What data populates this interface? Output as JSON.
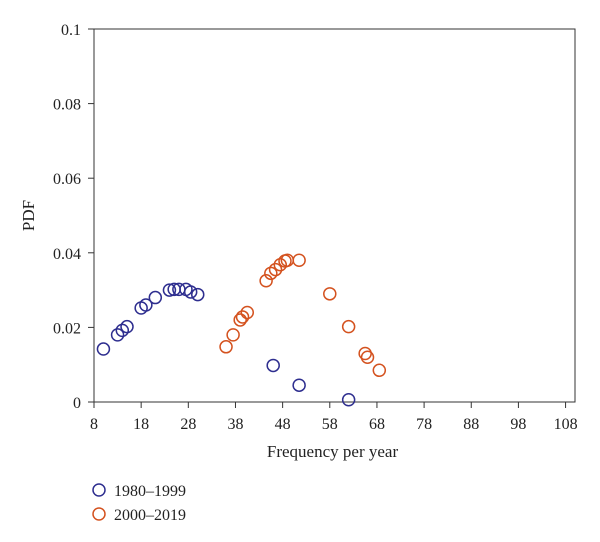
{
  "chart_data": {
    "type": "scatter",
    "title": "",
    "xlabel": "Frequency per year",
    "ylabel": "PDF",
    "xlim": [
      8,
      110
    ],
    "ylim": [
      0,
      0.1
    ],
    "xticks": [
      8,
      18,
      28,
      38,
      48,
      58,
      68,
      78,
      88,
      98,
      108
    ],
    "xtick_labels": [
      "8",
      "18",
      "28",
      "38",
      "48",
      "58",
      "68",
      "78",
      "88",
      "98",
      "108"
    ],
    "yticks": [
      0,
      0.02,
      0.04,
      0.06,
      0.08,
      0.1
    ],
    "ytick_labels": [
      "0",
      "0.02",
      "0.04",
      "0.06",
      "0.08",
      "0.1"
    ],
    "grid": false,
    "legend": "bottom-left, below plot",
    "series": [
      {
        "name": "1980–1999",
        "color": "#2e2e8f",
        "marker": "open-circle",
        "points": [
          [
            10,
            0.0142
          ],
          [
            13,
            0.018
          ],
          [
            14,
            0.0192
          ],
          [
            15,
            0.0202
          ],
          [
            18,
            0.0252
          ],
          [
            19,
            0.026
          ],
          [
            21,
            0.028
          ],
          [
            24,
            0.03
          ],
          [
            25,
            0.0302
          ],
          [
            26,
            0.0302
          ],
          [
            27.5,
            0.0302
          ],
          [
            28.5,
            0.0295
          ],
          [
            30,
            0.0288
          ],
          [
            46,
            0.0098
          ],
          [
            51.5,
            0.0045
          ],
          [
            62,
            0.0006
          ]
        ]
      },
      {
        "name": "2000–2019",
        "color": "#d4521f",
        "marker": "open-circle",
        "points": [
          [
            36,
            0.0148
          ],
          [
            37.5,
            0.018
          ],
          [
            39,
            0.022
          ],
          [
            39.5,
            0.0228
          ],
          [
            40.5,
            0.024
          ],
          [
            44.5,
            0.0325
          ],
          [
            45.5,
            0.0345
          ],
          [
            46.5,
            0.0355
          ],
          [
            47.5,
            0.0368
          ],
          [
            48.5,
            0.0378
          ],
          [
            49,
            0.038
          ],
          [
            51.5,
            0.038
          ],
          [
            58,
            0.029
          ],
          [
            62,
            0.0202
          ],
          [
            65.5,
            0.013
          ],
          [
            66,
            0.012
          ],
          [
            68.5,
            0.0085
          ]
        ]
      }
    ]
  }
}
